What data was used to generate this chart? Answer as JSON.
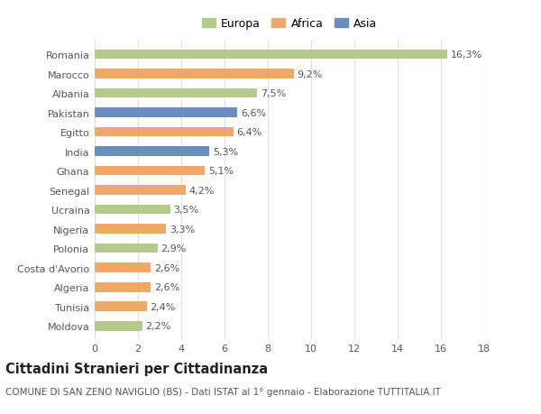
{
  "title": "Cittadini Stranieri per Cittadinanza",
  "subtitle": "COMUNE DI SAN ZENO NAVIGLIO (BS) - Dati ISTAT al 1° gennaio - Elaborazione TUTTITALIA.IT",
  "categories": [
    "Romania",
    "Marocco",
    "Albania",
    "Pakistan",
    "Egitto",
    "India",
    "Ghana",
    "Senegal",
    "Ucraina",
    "Nigeria",
    "Polonia",
    "Costa d'Avorio",
    "Algeria",
    "Tunisia",
    "Moldova"
  ],
  "values": [
    16.3,
    9.2,
    7.5,
    6.6,
    6.4,
    5.3,
    5.1,
    4.2,
    3.5,
    3.3,
    2.9,
    2.6,
    2.6,
    2.4,
    2.2
  ],
  "labels": [
    "16,3%",
    "9,2%",
    "7,5%",
    "6,6%",
    "6,4%",
    "5,3%",
    "5,1%",
    "4,2%",
    "3,5%",
    "3,3%",
    "2,9%",
    "2,6%",
    "2,6%",
    "2,4%",
    "2,2%"
  ],
  "continents": [
    "Europa",
    "Africa",
    "Europa",
    "Asia",
    "Africa",
    "Asia",
    "Africa",
    "Africa",
    "Europa",
    "Africa",
    "Europa",
    "Africa",
    "Africa",
    "Africa",
    "Europa"
  ],
  "colors": {
    "Europa": "#b5c98a",
    "Africa": "#f0a868",
    "Asia": "#6b8cbf"
  },
  "legend_order": [
    "Europa",
    "Africa",
    "Asia"
  ],
  "xlim": [
    0,
    18
  ],
  "xticks": [
    0,
    2,
    4,
    6,
    8,
    10,
    12,
    14,
    16,
    18
  ],
  "background_color": "#ffffff",
  "grid_color": "#dddddd",
  "bar_height": 0.5,
  "label_fontsize": 8,
  "tick_fontsize": 8,
  "title_fontsize": 10.5,
  "subtitle_fontsize": 7.5
}
